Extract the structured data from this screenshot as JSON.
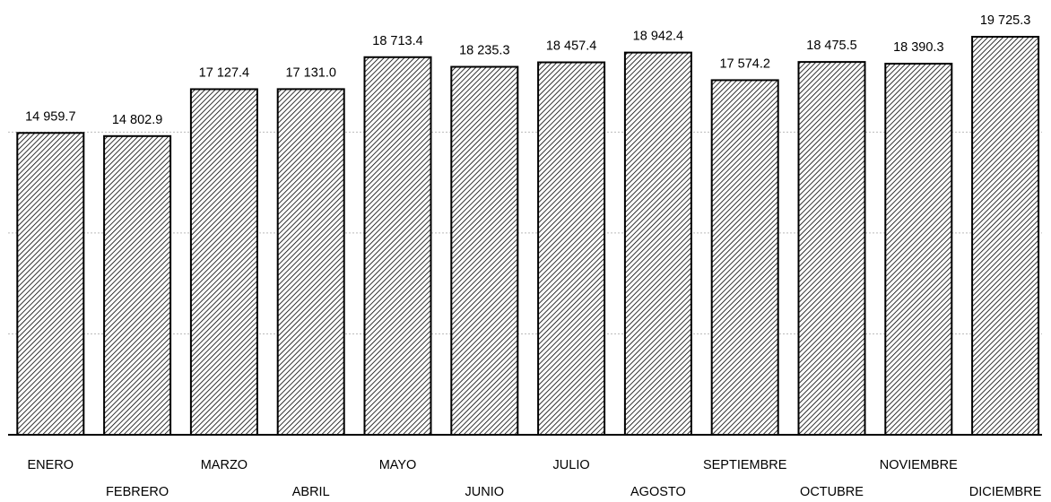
{
  "chart_data": {
    "type": "bar",
    "title": "",
    "xlabel": "",
    "ylabel": "",
    "categories": [
      "ENERO",
      "FEBRERO",
      "MARZO",
      "ABRIL",
      "MAYO",
      "JUNIO",
      "JULIO",
      "AGOSTO",
      "SEPTIEMBRE",
      "OCTUBRE",
      "NOVIEMBRE",
      "DICIEMBRE"
    ],
    "values": [
      14959.7,
      14802.9,
      17127.4,
      17131.0,
      18713.4,
      18235.3,
      18457.4,
      18942.4,
      17574.2,
      18475.5,
      18390.3,
      19725.3
    ],
    "value_labels": [
      "14 959.7",
      "14 802.9",
      "17 127.4",
      "17 131.0",
      "18 713.4",
      "18 235.3",
      "18 457.4",
      "18 942.4",
      "17 574.2",
      "18 475.5",
      "18 390.3",
      "19 725.3"
    ],
    "ylim": [
      0,
      19725.3
    ],
    "grid": true,
    "legend": "none",
    "bar_pattern": "diagonal-hatch",
    "colors": {
      "bar_fill": "#ffffff",
      "hatch": "#000000",
      "bar_stroke": "#000000",
      "grid": "#bbbbbb",
      "axis": "#000000"
    }
  }
}
